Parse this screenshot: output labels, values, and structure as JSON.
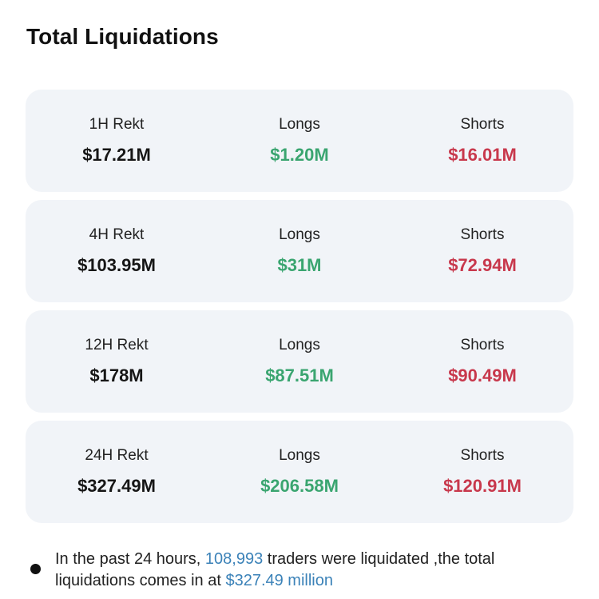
{
  "title": "Total Liquidations",
  "rows": [
    {
      "period": "1H Rekt",
      "total": "$17.21M",
      "longs_label": "Longs",
      "longs": "$1.20M",
      "shorts_label": "Shorts",
      "shorts": "$16.01M"
    },
    {
      "period": "4H Rekt",
      "total": "$103.95M",
      "longs_label": "Longs",
      "longs": "$31M",
      "shorts_label": "Shorts",
      "shorts": "$72.94M"
    },
    {
      "period": "12H Rekt",
      "total": "$178M",
      "longs_label": "Longs",
      "longs": "$87.51M",
      "shorts_label": "Shorts",
      "shorts": "$90.49M"
    },
    {
      "period": "24H Rekt",
      "total": "$327.49M",
      "longs_label": "Longs",
      "longs": "$206.58M",
      "shorts_label": "Shorts",
      "shorts": "$120.91M"
    }
  ],
  "note": {
    "part1": "In the past 24 hours, ",
    "traders_count": "108,993",
    "part2": " traders were liquidated ,the total liquidations comes in at ",
    "total_amount": "$327.49 million"
  },
  "colors": {
    "longs": "#3aa570",
    "shorts": "#c8384c",
    "highlight": "#3b82b8",
    "card_background": "#f1f4f8"
  }
}
